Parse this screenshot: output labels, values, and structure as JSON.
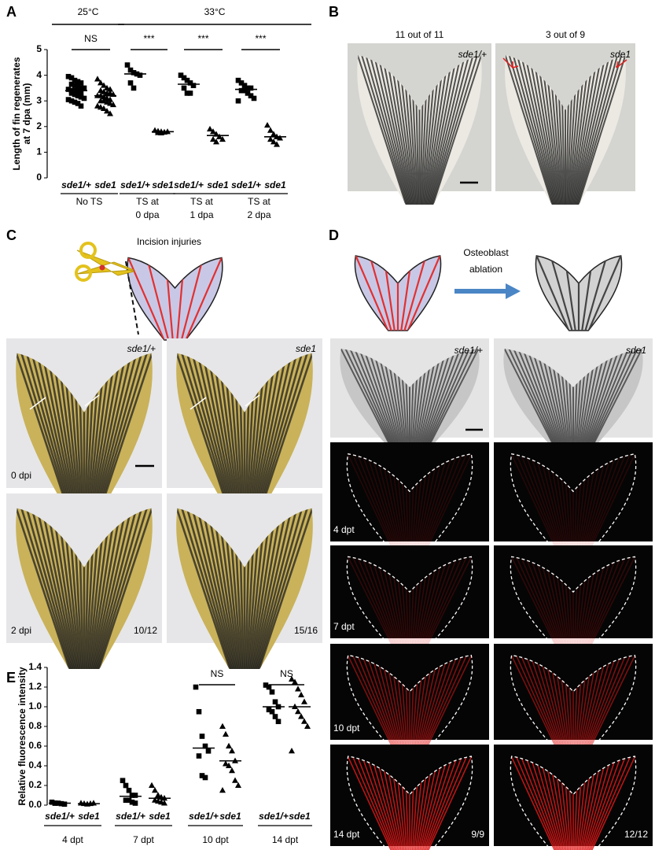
{
  "chart_data": [
    {
      "type": "dotplot",
      "ylabel": [
        "Length of fin regenerates",
        "at 7 dpa (mm)"
      ],
      "ylim": [
        0,
        5
      ],
      "yticks": [
        0,
        1,
        2,
        3,
        4,
        5
      ],
      "categories": [
        "sde1/+",
        "sde1",
        "sde1/+",
        "sde1",
        "sde1/+",
        "sde1",
        "sde1/+",
        "sde1"
      ],
      "markers": [
        "square",
        "triangle",
        "square",
        "triangle",
        "square",
        "triangle",
        "square",
        "triangle"
      ],
      "color": "#000000",
      "group_labels": [
        [
          "No TS"
        ],
        [
          "TS at",
          "0 dpa"
        ],
        [
          "TS at",
          "1 dpa"
        ],
        [
          "TS at",
          "2 dpa"
        ]
      ],
      "temperatures": [
        "25°C",
        "33°C"
      ],
      "significance": [
        "NS",
        "***",
        "***",
        "***"
      ],
      "points": [
        [
          3.95,
          3.9,
          3.8,
          3.75,
          3.7,
          3.65,
          3.6,
          3.55,
          3.5,
          3.5,
          3.45,
          3.4,
          3.4,
          3.35,
          3.3,
          3.3,
          3.25,
          3.2,
          3.15,
          3.1,
          3.05,
          3.0,
          2.95,
          2.9,
          2.8
        ],
        [
          3.85,
          3.7,
          3.6,
          3.5,
          3.45,
          3.4,
          3.35,
          3.3,
          3.3,
          3.25,
          3.2,
          3.2,
          3.15,
          3.1,
          3.05,
          3.0,
          3.0,
          2.95,
          2.9,
          2.85,
          2.8,
          2.75,
          2.7,
          2.6,
          2.5
        ],
        [
          4.4,
          4.2,
          4.1,
          4.05,
          4.0,
          3.7,
          3.5
        ],
        [
          1.85,
          1.82,
          1.8,
          1.78,
          1.8,
          1.76,
          1.75
        ],
        [
          4.0,
          3.9,
          3.8,
          3.7,
          3.6,
          3.5,
          3.3,
          3.3
        ],
        [
          1.9,
          1.8,
          1.7,
          1.6,
          1.5,
          1.5,
          1.4
        ],
        [
          3.8,
          3.7,
          3.6,
          3.5,
          3.5,
          3.4,
          3.4,
          3.3,
          3.2,
          3.1,
          3.0
        ],
        [
          2.05,
          1.85,
          1.7,
          1.6,
          1.55,
          1.5,
          1.4,
          1.3
        ]
      ],
      "means": [
        3.4,
        3.2,
        4.05,
        1.8,
        3.65,
        1.65,
        3.45,
        1.6
      ]
    },
    {
      "type": "dotplot",
      "ylabel": [
        "Relative fluorescence intensity"
      ],
      "ylim": [
        0,
        1.4
      ],
      "yticks": [
        {
          "value": 0,
          "label": "0.0"
        },
        0.2,
        0.4,
        0.6,
        0.8,
        {
          "value": 1,
          "label": "1.0"
        },
        1.2,
        1.4
      ],
      "categories": [
        "sde1/+",
        "sde1",
        "sde1/+",
        "sde1",
        "sde1/+",
        "sde1",
        "sde1/+",
        "sde1"
      ],
      "markers": [
        "square",
        "triangle",
        "square",
        "triangle",
        "square",
        "triangle",
        "square",
        "triangle"
      ],
      "color": "#000000",
      "group_labels": [
        [
          "4 dpt"
        ],
        [
          "7 dpt"
        ],
        [
          "10 dpt"
        ],
        [
          "14 dpt"
        ]
      ],
      "significance": [
        null,
        null,
        "NS",
        "NS"
      ],
      "points": [
        [
          0.03,
          0.02,
          0.02,
          0.015,
          0.01,
          0.02
        ],
        [
          0.02,
          0.015,
          0.01,
          0.015,
          0.02
        ],
        [
          0.25,
          0.2,
          0.15,
          0.1,
          0.1,
          0.05,
          0.05,
          0.03,
          0.02
        ],
        [
          0.2,
          0.15,
          0.1,
          0.08,
          0.07,
          0.05,
          0.04,
          0.03,
          0.02
        ],
        [
          1.2,
          0.95,
          0.7,
          0.6,
          0.55,
          0.5,
          0.3,
          0.28
        ],
        [
          0.8,
          0.72,
          0.6,
          0.55,
          0.45,
          0.42,
          0.4,
          0.35,
          0.25,
          0.2,
          0.15
        ],
        [
          1.22,
          1.2,
          1.15,
          1.05,
          1.0,
          0.97,
          0.95,
          0.9,
          0.85
        ],
        [
          1.28,
          1.25,
          1.18,
          1.12,
          1.05,
          1.0,
          0.95,
          0.9,
          0.85,
          0.8,
          0.55
        ]
      ],
      "means": [
        0.02,
        0.015,
        0.09,
        0.07,
        0.58,
        0.45,
        1.0,
        1.0
      ]
    }
  ],
  "panels": {
    "labels": [
      "A",
      "B",
      "C",
      "D",
      "E"
    ],
    "B": {
      "captions": [
        "11 out of 11",
        "3 out of 9"
      ],
      "genotypes": [
        "sde1/+",
        "sde1"
      ]
    },
    "C": {
      "title": "Incision injuries",
      "genotypes": [
        "sde1/+",
        "sde1"
      ],
      "times": [
        "0 dpi",
        "2 dpi"
      ],
      "counts": [
        "10/12",
        "15/16"
      ]
    },
    "D": {
      "title": [
        "Osteoblast",
        "ablation"
      ],
      "genotypes": [
        "sde1/+",
        "sde1"
      ],
      "times": [
        "4 dpt",
        "7 dpt",
        "10 dpt",
        "14 dpt"
      ],
      "counts": [
        "9/9",
        "12/12"
      ]
    }
  }
}
